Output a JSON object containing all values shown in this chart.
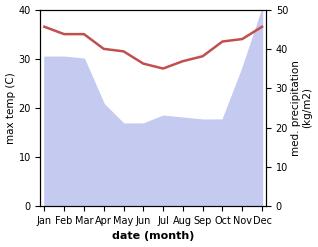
{
  "months": [
    "Jan",
    "Feb",
    "Mar",
    "Apr",
    "May",
    "Jun",
    "Jul",
    "Aug",
    "Sep",
    "Oct",
    "Nov",
    "Dec"
  ],
  "month_indices": [
    0,
    1,
    2,
    3,
    4,
    5,
    6,
    7,
    8,
    9,
    10,
    11
  ],
  "temperature": [
    36.5,
    35.0,
    35.0,
    32.0,
    31.5,
    29.0,
    28.0,
    29.5,
    30.5,
    33.5,
    34.0,
    36.5
  ],
  "precipitation": [
    38.0,
    38.0,
    37.5,
    26.0,
    21.0,
    21.0,
    23.0,
    22.5,
    22.0,
    22.0,
    35.0,
    50.0
  ],
  "temp_color": "#c0504d",
  "precip_fill_color": "#c5caf0",
  "temp_ylim": [
    0,
    40
  ],
  "precip_ylim": [
    0,
    50
  ],
  "left_yticks": [
    0,
    10,
    20,
    30,
    40
  ],
  "right_yticks": [
    0,
    10,
    20,
    30,
    40,
    50
  ],
  "xlabel": "date (month)",
  "ylabel_left": "max temp (C)",
  "ylabel_right": "med. precipitation\n(kg/m2)",
  "background_color": "#ffffff",
  "temp_linewidth": 1.8,
  "xlabel_fontsize": 8,
  "ylabel_fontsize": 7.5,
  "tick_fontsize": 7
}
